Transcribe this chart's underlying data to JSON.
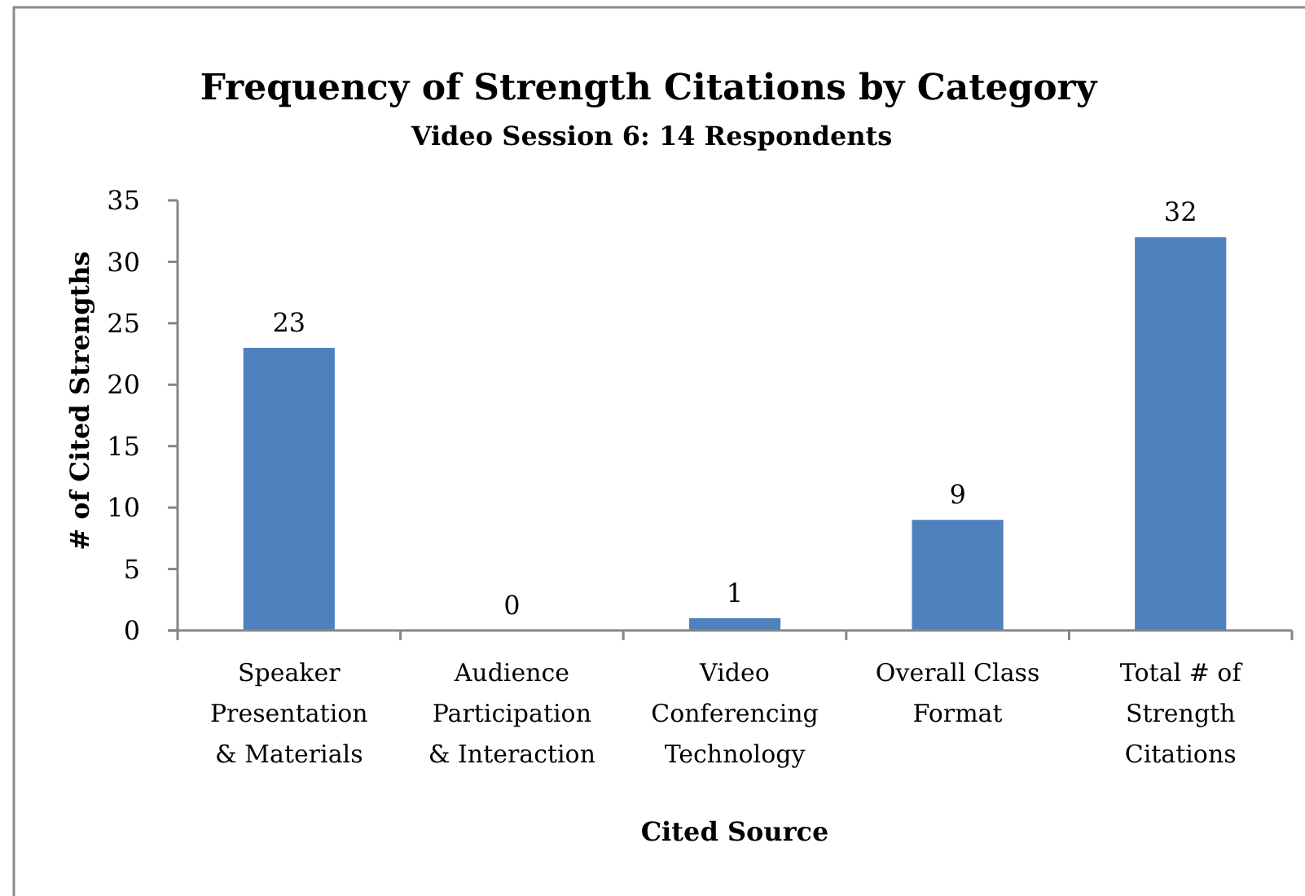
{
  "chart_data": {
    "type": "bar",
    "title": "Frequency of Strength Citations by Category",
    "subtitle": "Video Session 6: 14 Respondents",
    "xlabel": "Cited Source",
    "ylabel": "# of Cited Strengths",
    "categories": [
      "Speaker\nPresentation\n& Materials",
      "Audience\nParticipation\n& Interaction",
      "Video\nConferencing\nTechnology",
      "Overall Class\nFormat",
      "Total # of\nStrength\nCitations"
    ],
    "values": [
      23,
      0,
      1,
      9,
      32
    ],
    "color": "#4f81bd",
    "ylim": [
      0,
      35
    ],
    "yticks": [
      0,
      5,
      10,
      15,
      20,
      25,
      30,
      35
    ],
    "data_labels": true
  }
}
